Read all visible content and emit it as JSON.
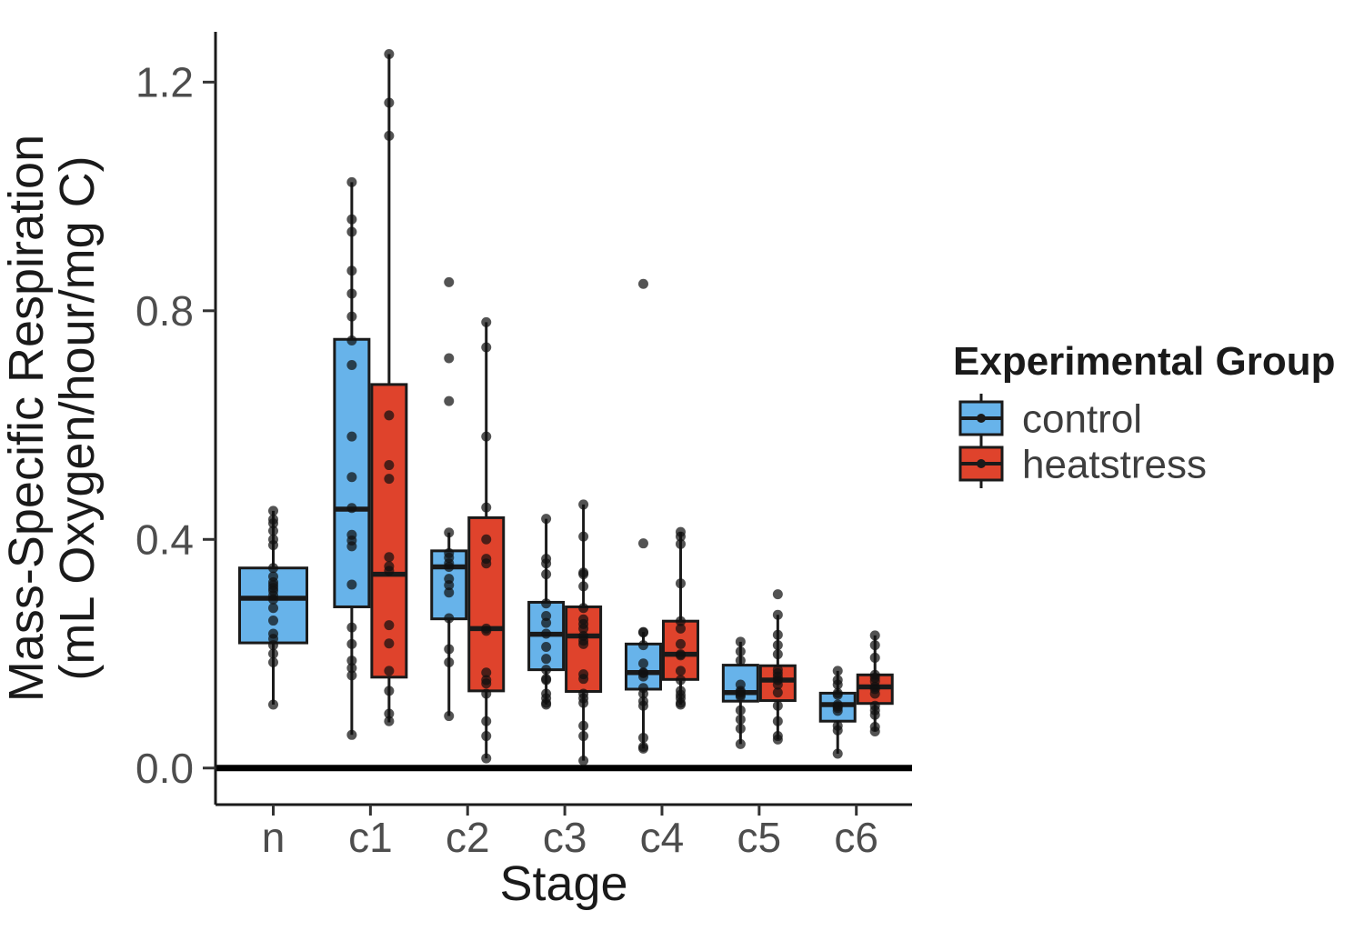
{
  "figure": {
    "background": "#FFFFFF"
  },
  "axes": {
    "x": {
      "title": "Stage",
      "categories": [
        "n",
        "c1",
        "c2",
        "c3",
        "c4",
        "c5",
        "c6"
      ]
    },
    "y": {
      "title_line1": "Mass-Specific Respiration",
      "title_line2": "(mL Oxygen/hour/mg C)",
      "tick_labels": [
        "0.0",
        "0.4",
        "0.8",
        "1.2"
      ],
      "tick_values": [
        0.0,
        0.4,
        0.8,
        1.2
      ]
    }
  },
  "legend": {
    "title": "Experimental Group",
    "entries": [
      {
        "label": "control",
        "color": "#67B3EA"
      },
      {
        "label": "heatstress",
        "color": "#DF432C"
      }
    ]
  },
  "styles": {
    "box_border_color": "#1A1A1A",
    "point_color": "#111111",
    "point_opacity": 0.72,
    "tick_label_color": "#4D4D4D",
    "axis_title_color": "#1A1A1A",
    "legend_label_color": "#3D3D3D",
    "zero_line_color": "#000000"
  },
  "chart_data": {
    "type": "boxplot",
    "title": "",
    "xlabel": "Stage",
    "ylabel": "Mass-Specific Respiration (mL Oxygen/hour/mg C)",
    "categories": [
      "n",
      "c1",
      "c2",
      "c3",
      "c4",
      "c5",
      "c6"
    ],
    "y_ticks": [
      0.0,
      0.4,
      0.8,
      1.2
    ],
    "ylim": [
      -0.064,
      1.288
    ],
    "grid": false,
    "legend_position": "right",
    "legend_title": "Experimental Group",
    "zero_reference_line": 0.0,
    "groups": [
      {
        "name": "control",
        "color": "#67B3EA",
        "boxes": [
          {
            "stage": "n",
            "whisker_low": 0.111,
            "q1": 0.219,
            "median": 0.297,
            "q3": 0.35,
            "whisker_high": 0.45,
            "points": [
              0.45,
              0.435,
              0.428,
              0.415,
              0.4,
              0.39,
              0.35,
              0.335,
              0.325,
              0.32,
              0.315,
              0.31,
              0.302,
              0.295,
              0.28,
              0.258,
              0.235,
              0.226,
              0.215,
              0.2,
              0.185,
              0.111
            ]
          },
          {
            "stage": "c1",
            "whisker_low": 0.058,
            "q1": 0.282,
            "median": 0.453,
            "q3": 0.75,
            "whisker_high": 1.025,
            "points": [
              1.025,
              0.96,
              0.938,
              0.87,
              0.83,
              0.79,
              0.748,
              0.705,
              0.58,
              0.509,
              0.455,
              0.408,
              0.398,
              0.388,
              0.321,
              0.246,
              0.217,
              0.188,
              0.175,
              0.162,
              0.058
            ]
          },
          {
            "stage": "c2",
            "whisker_low": 0.091,
            "q1": 0.261,
            "median": 0.352,
            "q3": 0.38,
            "whisker_high": 0.412,
            "outliers": [
              0.85,
              0.717,
              0.642
            ],
            "points": [
              0.85,
              0.717,
              0.642,
              0.412,
              0.376,
              0.368,
              0.358,
              0.352,
              0.331,
              0.32,
              0.307,
              0.262,
              0.208,
              0.185,
              0.091
            ]
          },
          {
            "stage": "c3",
            "whisker_low": 0.111,
            "q1": 0.172,
            "median": 0.234,
            "q3": 0.29,
            "whisker_high": 0.436,
            "points": [
              0.436,
              0.366,
              0.358,
              0.339,
              0.288,
              0.266,
              0.254,
              0.235,
              0.212,
              0.191,
              0.172,
              0.156,
              0.154,
              0.13,
              0.122,
              0.114,
              0.111
            ]
          },
          {
            "stage": "c4",
            "whisker_low": 0.034,
            "q1": 0.138,
            "median": 0.167,
            "q3": 0.217,
            "whisker_high": 0.238,
            "outliers": [
              0.847,
              0.393
            ],
            "points": [
              0.847,
              0.393,
              0.238,
              0.237,
              0.215,
              0.183,
              0.167,
              0.166,
              0.16,
              0.14,
              0.13,
              0.117,
              0.109,
              0.053,
              0.037,
              0.034
            ]
          },
          {
            "stage": "c5",
            "whisker_low": 0.042,
            "q1": 0.117,
            "median": 0.132,
            "q3": 0.18,
            "whisker_high": 0.221,
            "points": [
              0.221,
              0.204,
              0.188,
              0.146,
              0.135,
              0.132,
              0.128,
              0.125,
              0.101,
              0.085,
              0.069,
              0.042
            ]
          },
          {
            "stage": "c6",
            "whisker_low": 0.025,
            "q1": 0.082,
            "median": 0.111,
            "q3": 0.131,
            "whisker_high": 0.17,
            "points": [
              0.17,
              0.154,
              0.146,
              0.131,
              0.128,
              0.111,
              0.108,
              0.105,
              0.1,
              0.074,
              0.066,
              0.025
            ]
          }
        ]
      },
      {
        "name": "heatstress",
        "color": "#DF432C",
        "boxes": [
          null,
          {
            "stage": "c1",
            "whisker_low": 0.08,
            "q1": 0.159,
            "median": 0.339,
            "q3": 0.671,
            "whisker_high": 1.249,
            "points": [
              1.249,
              1.164,
              1.106,
              0.617,
              0.53,
              0.506,
              0.369,
              0.353,
              0.345,
              0.25,
              0.218,
              0.17,
              0.135,
              0.095,
              0.082
            ]
          },
          {
            "stage": "c2",
            "whisker_low": 0.017,
            "q1": 0.135,
            "median": 0.244,
            "q3": 0.438,
            "whisker_high": 0.78,
            "points": [
              0.78,
              0.736,
              0.58,
              0.456,
              0.4,
              0.366,
              0.358,
              0.244,
              0.24,
              0.167,
              0.154,
              0.148,
              0.13,
              0.082,
              0.056,
              0.017
            ]
          },
          {
            "stage": "c3",
            "whisker_low": 0.013,
            "q1": 0.134,
            "median": 0.231,
            "q3": 0.282,
            "whisker_high": 0.461,
            "points": [
              0.461,
              0.405,
              0.342,
              0.339,
              0.318,
              0.28,
              0.26,
              0.252,
              0.244,
              0.231,
              0.223,
              0.217,
              0.164,
              0.156,
              0.13,
              0.122,
              0.114,
              0.074,
              0.056,
              0.013
            ]
          },
          {
            "stage": "c4",
            "whisker_low": 0.111,
            "q1": 0.155,
            "median": 0.199,
            "q3": 0.257,
            "whisker_high": 0.413,
            "points": [
              0.413,
              0.405,
              0.392,
              0.323,
              0.257,
              0.244,
              0.217,
              0.199,
              0.197,
              0.17,
              0.154,
              0.135,
              0.128,
              0.122,
              0.114,
              0.111
            ]
          },
          {
            "stage": "c5",
            "whisker_low": 0.05,
            "q1": 0.118,
            "median": 0.154,
            "q3": 0.179,
            "whisker_high": 0.268,
            "outliers": [
              0.304
            ],
            "points": [
              0.304,
              0.268,
              0.233,
              0.215,
              0.199,
              0.172,
              0.166,
              0.16,
              0.154,
              0.146,
              0.132,
              0.109,
              0.082,
              0.056,
              0.05
            ]
          },
          {
            "stage": "c6",
            "whisker_low": 0.064,
            "q1": 0.113,
            "median": 0.142,
            "q3": 0.163,
            "whisker_high": 0.232,
            "points": [
              0.232,
              0.215,
              0.193,
              0.163,
              0.158,
              0.152,
              0.142,
              0.138,
              0.13,
              0.109,
              0.101,
              0.093,
              0.072,
              0.064
            ]
          }
        ]
      }
    ]
  }
}
